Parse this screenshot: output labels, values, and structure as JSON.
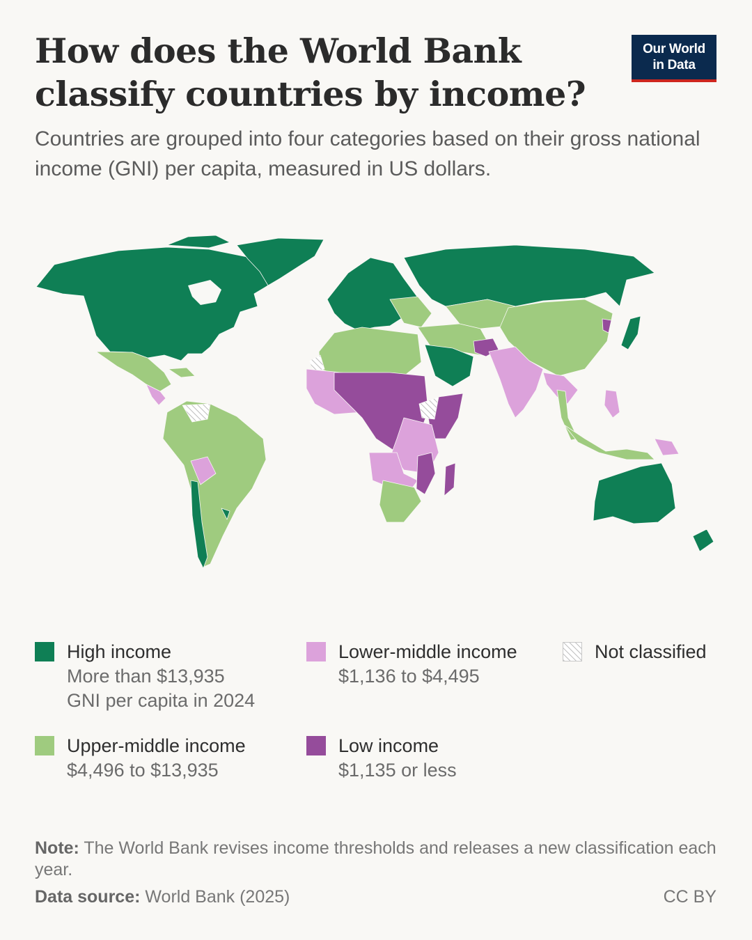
{
  "header": {
    "title": "How does the World Bank classify countries by income?",
    "subtitle": "Countries are grouped into four categories based on their gross national income (GNI) per capita, measured in US dollars.",
    "logo_line1": "Our World",
    "logo_line2": "in Data"
  },
  "legend": {
    "high": {
      "label": "High income",
      "range": "More than $13,935",
      "range2": "GNI per capita in 2024",
      "color": "#0f7f55"
    },
    "upper": {
      "label": "Upper-middle income",
      "range": "$4,496 to $13,935",
      "color": "#9fcb7f"
    },
    "lower": {
      "label": "Lower-middle income",
      "range": "$1,136 to $4,495",
      "color": "#dca2db"
    },
    "low": {
      "label": "Low income",
      "range": "$1,135 or less",
      "color": "#954c9b"
    },
    "none": {
      "label": "Not classified"
    }
  },
  "footer": {
    "note_label": "Note:",
    "note_text": " The World Bank revises income thresholds and releases a new classification each year.",
    "source_label": "Data source:",
    "source_text": " World Bank (2025)",
    "license": "CC BY"
  }
}
